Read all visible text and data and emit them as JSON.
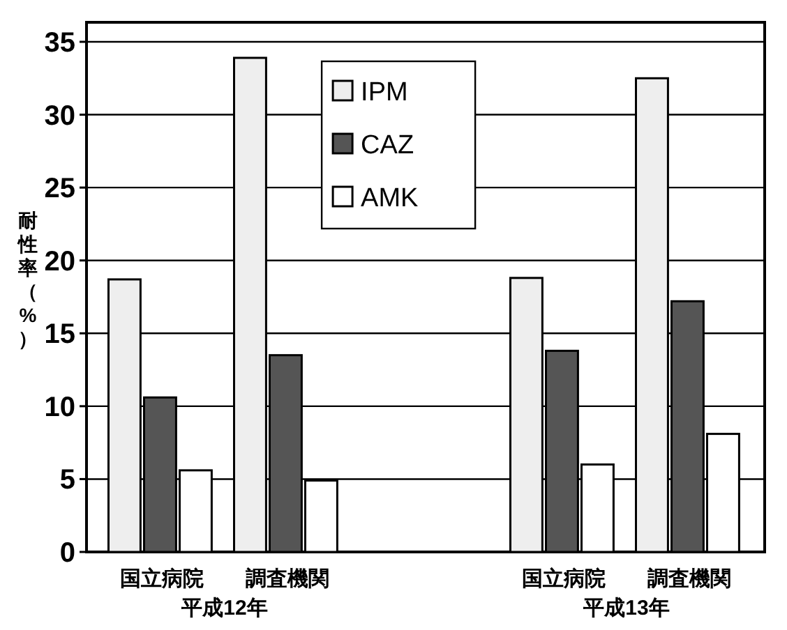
{
  "chart_data": {
    "type": "bar",
    "ylabel": "耐性率（%）",
    "categories": [
      "国立病院",
      "調査機関",
      "国立病院",
      "調査機関"
    ],
    "annotations": [
      "平成12年",
      "平成13年"
    ],
    "series": [
      {
        "name": "IPM",
        "color": "#eeeeee",
        "values": [
          18.7,
          33.9,
          18.8,
          32.5
        ]
      },
      {
        "name": "CAZ",
        "color": "#555555",
        "values": [
          10.6,
          13.5,
          13.8,
          17.2
        ]
      },
      {
        "name": "AMK",
        "color": "#ffffff",
        "values": [
          5.6,
          4.9,
          6.0,
          8.1
        ]
      }
    ],
    "ylim": [
      0,
      35
    ],
    "yticks": [
      0,
      5,
      10,
      15,
      20,
      25,
      30,
      35
    ],
    "grid": "y",
    "legend": "top"
  }
}
